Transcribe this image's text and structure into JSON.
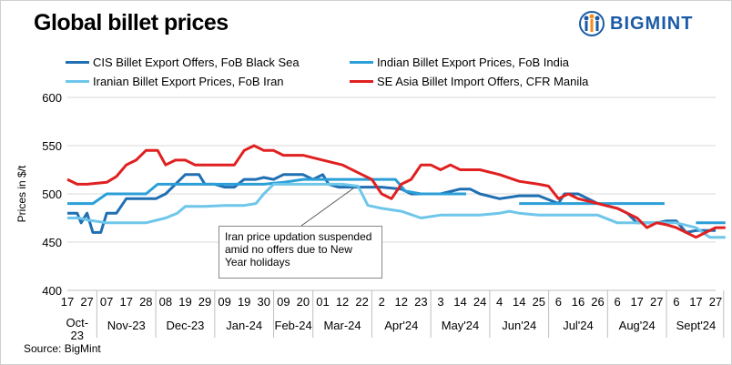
{
  "brand": {
    "name": "BIGMINT"
  },
  "source": "Source: BigMint",
  "annotation": "Iran price updation suspended amid no offers due to New Year holidays",
  "colors": {
    "cis": "#1f6fb2",
    "india": "#2b9fd8",
    "iran": "#6ec6ea",
    "sea": "#e02020"
  },
  "chart_data": {
    "type": "line",
    "title": "Global billet prices",
    "ylabel": "Prices in $/t",
    "ylim": [
      400,
      600
    ],
    "yticks": [
      400,
      450,
      500,
      550,
      600
    ],
    "grid": "horizontal",
    "legend": "top, two columns",
    "x_ticks": [
      "17",
      "27",
      "07",
      "17",
      "28",
      "08",
      "19",
      "29",
      "09",
      "19",
      "30",
      "09",
      "20",
      "01",
      "12",
      "22",
      "2",
      "12",
      "23",
      "3",
      "14",
      "24",
      "4",
      "14",
      "25",
      "6",
      "16",
      "26",
      "6",
      "17",
      "27",
      "6",
      "17",
      "27"
    ],
    "months": [
      {
        "label": "Oct-23",
        "from": 0,
        "to": 1
      },
      {
        "label": "Nov-23",
        "from": 2,
        "to": 4
      },
      {
        "label": "Dec-23",
        "from": 5,
        "to": 7
      },
      {
        "label": "Jan-24",
        "from": 8,
        "to": 10
      },
      {
        "label": "Feb-24",
        "from": 11,
        "to": 12
      },
      {
        "label": "Mar-24",
        "from": 13,
        "to": 15
      },
      {
        "label": "Apr'24",
        "from": 16,
        "to": 18
      },
      {
        "label": "May'24",
        "from": 19,
        "to": 21
      },
      {
        "label": "Jun'24",
        "from": 22,
        "to": 24
      },
      {
        "label": "Jul'24",
        "from": 25,
        "to": 27
      },
      {
        "label": "Aug'24",
        "from": 28,
        "to": 30
      },
      {
        "label": "Sept'24",
        "from": 31,
        "to": 33
      }
    ],
    "series": [
      {
        "name": "CIS Billet Export Offers, FoB Black Sea",
        "color": "#1f6fb2",
        "key": "cis",
        "points": [
          [
            0,
            480
          ],
          [
            0.5,
            480
          ],
          [
            0.7,
            470
          ],
          [
            1,
            480
          ],
          [
            1.3,
            460
          ],
          [
            1.7,
            460
          ],
          [
            2,
            480
          ],
          [
            2.5,
            480
          ],
          [
            3,
            495
          ],
          [
            4,
            495
          ],
          [
            4.5,
            495
          ],
          [
            5,
            500
          ],
          [
            5.5,
            510
          ],
          [
            6,
            520
          ],
          [
            6.7,
            520
          ],
          [
            7,
            510
          ],
          [
            7.5,
            510
          ],
          [
            8,
            507
          ],
          [
            8.5,
            507
          ],
          [
            9,
            515
          ],
          [
            9.6,
            515
          ],
          [
            10,
            517
          ],
          [
            10.5,
            515
          ],
          [
            11,
            520
          ],
          [
            12,
            520
          ],
          [
            12.5,
            515
          ],
          [
            13,
            520
          ],
          [
            13.3,
            510
          ],
          [
            13.8,
            507
          ],
          [
            14,
            507
          ],
          [
            15,
            507
          ],
          [
            16,
            507
          ],
          [
            17,
            505
          ],
          [
            17.5,
            500
          ],
          [
            18,
            500
          ],
          [
            19,
            500
          ],
          [
            20,
            505
          ],
          [
            20.5,
            505
          ],
          [
            21,
            500
          ],
          [
            22,
            495
          ],
          [
            23,
            498
          ],
          [
            24,
            498
          ],
          [
            25,
            490
          ],
          [
            25.3,
            500
          ],
          [
            26,
            500
          ],
          [
            27,
            490
          ],
          [
            28,
            485
          ],
          [
            28.5,
            480
          ],
          [
            29,
            470
          ],
          [
            30,
            470
          ],
          [
            30.5,
            472
          ],
          [
            31,
            472
          ],
          [
            31.5,
            460
          ],
          [
            32,
            462
          ],
          [
            33,
            462
          ]
        ]
      },
      {
        "name": "Indian Billet Export Prices, FoB India",
        "color": "#2b9fd8",
        "key": "india",
        "points": [
          [
            0,
            490
          ],
          [
            1,
            490
          ],
          [
            1.3,
            490
          ],
          [
            2,
            500
          ],
          [
            3,
            500
          ],
          [
            4,
            500
          ],
          [
            4.6,
            510
          ],
          [
            5,
            510
          ],
          [
            7,
            510
          ],
          [
            8,
            510
          ],
          [
            9,
            510
          ],
          [
            10,
            510
          ],
          [
            11,
            512
          ],
          [
            12,
            515
          ],
          [
            13,
            515
          ],
          [
            14,
            515
          ],
          [
            15,
            515
          ],
          [
            16,
            515
          ],
          [
            16.7,
            515
          ],
          [
            17.2,
            503
          ],
          [
            18,
            500
          ],
          [
            19,
            500
          ],
          [
            20,
            500
          ],
          [
            20.3,
            500
          ]
        ]
      },
      {
        "name": "Indian Billet Export Prices, FoB India",
        "color": "#2b9fd8",
        "key": "india2",
        "points": [
          [
            23,
            490
          ],
          [
            27,
            490
          ],
          [
            28,
            490
          ],
          [
            29,
            490
          ],
          [
            30,
            490
          ],
          [
            30.4,
            490
          ]
        ]
      },
      {
        "name": "Indian Billet Export Prices, FoB India",
        "color": "#2b9fd8",
        "key": "india3",
        "points": [
          [
            32,
            470
          ],
          [
            33,
            470
          ],
          [
            33.5,
            470
          ]
        ]
      },
      {
        "name": "Iranian Billet Export Prices, FoB Iran",
        "color": "#6ec6ea",
        "key": "iran",
        "points": [
          [
            0,
            475
          ],
          [
            0.6,
            475
          ],
          [
            1,
            473
          ],
          [
            2,
            470
          ],
          [
            3,
            470
          ],
          [
            4,
            470
          ],
          [
            5,
            475
          ],
          [
            5.6,
            480
          ],
          [
            6,
            487
          ],
          [
            7,
            487
          ],
          [
            8,
            488
          ],
          [
            9,
            488
          ],
          [
            9.6,
            490
          ],
          [
            10,
            500
          ],
          [
            10.5,
            510
          ],
          [
            11,
            510
          ],
          [
            12,
            510
          ],
          [
            13,
            510
          ],
          [
            14,
            510
          ],
          [
            14.8,
            508
          ],
          [
            15.3,
            488
          ],
          [
            16,
            485
          ],
          [
            17,
            482
          ],
          [
            18,
            475
          ],
          [
            19,
            478
          ],
          [
            20,
            478
          ],
          [
            21,
            478
          ],
          [
            22,
            480
          ],
          [
            22.5,
            482
          ],
          [
            23,
            480
          ],
          [
            24,
            478
          ],
          [
            25,
            478
          ],
          [
            26,
            478
          ],
          [
            27,
            478
          ],
          [
            28,
            470
          ],
          [
            29,
            470
          ],
          [
            30,
            470
          ],
          [
            31,
            470
          ],
          [
            32,
            465
          ],
          [
            32.7,
            455
          ],
          [
            33,
            455
          ],
          [
            33.5,
            455
          ]
        ]
      },
      {
        "name": "SE Asia Billet Import Offers, CFR Manila",
        "color": "#e02020",
        "key": "sea",
        "points": [
          [
            0,
            515
          ],
          [
            0.5,
            510
          ],
          [
            1,
            510
          ],
          [
            2,
            512
          ],
          [
            2.5,
            518
          ],
          [
            3,
            530
          ],
          [
            3.5,
            535
          ],
          [
            4,
            545
          ],
          [
            4.6,
            545
          ],
          [
            5,
            530
          ],
          [
            5.5,
            535
          ],
          [
            6,
            535
          ],
          [
            6.5,
            530
          ],
          [
            7,
            530
          ],
          [
            8,
            530
          ],
          [
            8.5,
            530
          ],
          [
            9,
            545
          ],
          [
            9.5,
            550
          ],
          [
            10,
            545
          ],
          [
            10.5,
            545
          ],
          [
            11,
            540
          ],
          [
            12,
            540
          ],
          [
            13,
            535
          ],
          [
            14,
            530
          ],
          [
            15,
            520
          ],
          [
            15.5,
            515
          ],
          [
            16,
            500
          ],
          [
            16.5,
            495
          ],
          [
            17,
            510
          ],
          [
            17.5,
            515
          ],
          [
            18,
            530
          ],
          [
            18.5,
            530
          ],
          [
            19,
            525
          ],
          [
            19.5,
            530
          ],
          [
            20,
            525
          ],
          [
            21,
            525
          ],
          [
            22,
            520
          ],
          [
            23,
            513
          ],
          [
            24,
            510
          ],
          [
            24.5,
            508
          ],
          [
            25,
            495
          ],
          [
            25.5,
            500
          ],
          [
            26,
            495
          ],
          [
            27,
            490
          ],
          [
            28,
            485
          ],
          [
            28.5,
            480
          ],
          [
            29,
            475
          ],
          [
            29.5,
            465
          ],
          [
            30,
            470
          ],
          [
            30.5,
            468
          ],
          [
            31,
            465
          ],
          [
            31.5,
            460
          ],
          [
            32,
            455
          ],
          [
            32.5,
            460
          ],
          [
            33,
            465
          ],
          [
            33.5,
            465
          ]
        ]
      }
    ]
  }
}
